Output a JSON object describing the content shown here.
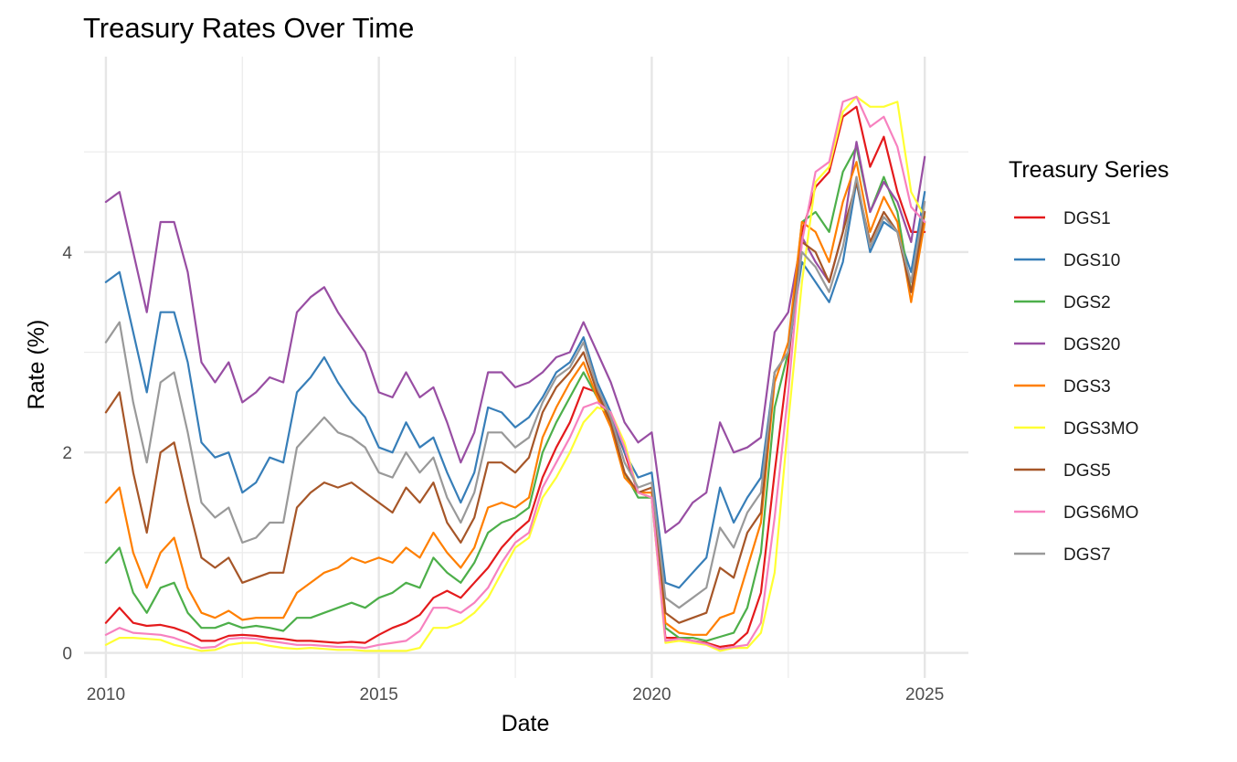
{
  "chart_data": {
    "type": "line",
    "title": "Treasury Rates Over Time",
    "xlabel": "Date",
    "ylabel": "Rate (%)",
    "legend_title": "Treasury Series",
    "legend_position": "right",
    "grid": true,
    "xlim": [
      2009.6,
      2025.8
    ],
    "ylim": [
      -0.25,
      5.95
    ],
    "x_ticks": [
      2010,
      2015,
      2020,
      2025
    ],
    "y_ticks": [
      0,
      2,
      4
    ],
    "x": [
      2010.0,
      2010.25,
      2010.5,
      2010.75,
      2011.0,
      2011.25,
      2011.5,
      2011.75,
      2012.0,
      2012.25,
      2012.5,
      2012.75,
      2013.0,
      2013.25,
      2013.5,
      2013.75,
      2014.0,
      2014.25,
      2014.5,
      2014.75,
      2015.0,
      2015.25,
      2015.5,
      2015.75,
      2016.0,
      2016.25,
      2016.5,
      2016.75,
      2017.0,
      2017.25,
      2017.5,
      2017.75,
      2018.0,
      2018.25,
      2018.5,
      2018.75,
      2019.0,
      2019.25,
      2019.5,
      2019.75,
      2020.0,
      2020.25,
      2020.5,
      2020.75,
      2021.0,
      2021.25,
      2021.5,
      2021.75,
      2022.0,
      2022.25,
      2022.5,
      2022.75,
      2023.0,
      2023.25,
      2023.5,
      2023.75,
      2024.0,
      2024.25,
      2024.5,
      2024.75,
      2025.0
    ],
    "series": [
      {
        "name": "DGS1",
        "color": "#E41A1C",
        "values": [
          0.3,
          0.45,
          0.3,
          0.27,
          0.28,
          0.25,
          0.2,
          0.12,
          0.12,
          0.17,
          0.18,
          0.17,
          0.15,
          0.14,
          0.12,
          0.12,
          0.11,
          0.1,
          0.11,
          0.1,
          0.18,
          0.25,
          0.3,
          0.38,
          0.55,
          0.62,
          0.55,
          0.7,
          0.85,
          1.05,
          1.2,
          1.32,
          1.75,
          2.05,
          2.3,
          2.65,
          2.6,
          2.35,
          2.0,
          1.6,
          1.55,
          0.15,
          0.15,
          0.12,
          0.1,
          0.06,
          0.08,
          0.2,
          0.6,
          1.8,
          2.9,
          4.2,
          4.65,
          4.8,
          5.35,
          5.45,
          4.85,
          5.15,
          4.6,
          4.2,
          4.2
        ]
      },
      {
        "name": "DGS10",
        "color": "#377EB8",
        "values": [
          3.7,
          3.8,
          3.2,
          2.6,
          3.4,
          3.4,
          2.9,
          2.1,
          1.95,
          2.0,
          1.6,
          1.7,
          1.95,
          1.9,
          2.6,
          2.75,
          2.95,
          2.7,
          2.5,
          2.35,
          2.05,
          2.0,
          2.3,
          2.05,
          2.15,
          1.8,
          1.5,
          1.8,
          2.45,
          2.4,
          2.25,
          2.35,
          2.55,
          2.8,
          2.9,
          3.15,
          2.7,
          2.4,
          2.0,
          1.75,
          1.8,
          0.7,
          0.65,
          0.8,
          0.95,
          1.65,
          1.3,
          1.55,
          1.75,
          2.8,
          3.0,
          3.9,
          3.7,
          3.5,
          3.9,
          4.7,
          4.0,
          4.3,
          4.2,
          3.8,
          4.6
        ]
      },
      {
        "name": "DGS2",
        "color": "#4DAF4A",
        "values": [
          0.9,
          1.05,
          0.6,
          0.4,
          0.65,
          0.7,
          0.4,
          0.25,
          0.25,
          0.3,
          0.25,
          0.27,
          0.25,
          0.22,
          0.35,
          0.35,
          0.4,
          0.45,
          0.5,
          0.45,
          0.55,
          0.6,
          0.7,
          0.65,
          0.95,
          0.8,
          0.7,
          0.9,
          1.2,
          1.3,
          1.35,
          1.45,
          2.0,
          2.3,
          2.55,
          2.8,
          2.55,
          2.3,
          1.8,
          1.55,
          1.55,
          0.25,
          0.15,
          0.15,
          0.12,
          0.16,
          0.2,
          0.45,
          1.0,
          2.45,
          3.0,
          4.3,
          4.4,
          4.2,
          4.8,
          5.05,
          4.4,
          4.75,
          4.4,
          3.6,
          4.3
        ]
      },
      {
        "name": "DGS20",
        "color": "#984EA3",
        "values": [
          4.5,
          4.6,
          4.0,
          3.4,
          4.3,
          4.3,
          3.8,
          2.9,
          2.7,
          2.9,
          2.5,
          2.6,
          2.75,
          2.7,
          3.4,
          3.55,
          3.65,
          3.4,
          3.2,
          3.0,
          2.6,
          2.55,
          2.8,
          2.55,
          2.65,
          2.3,
          1.9,
          2.2,
          2.8,
          2.8,
          2.65,
          2.7,
          2.8,
          2.95,
          3.0,
          3.3,
          3.0,
          2.7,
          2.3,
          2.1,
          2.2,
          1.2,
          1.3,
          1.5,
          1.6,
          2.3,
          2.0,
          2.05,
          2.15,
          3.2,
          3.4,
          4.15,
          3.9,
          3.7,
          4.2,
          5.1,
          4.4,
          4.7,
          4.5,
          4.1,
          4.95
        ]
      },
      {
        "name": "DGS3",
        "color": "#FF7F00",
        "values": [
          1.5,
          1.65,
          1.0,
          0.65,
          1.0,
          1.15,
          0.65,
          0.4,
          0.35,
          0.42,
          0.33,
          0.35,
          0.35,
          0.35,
          0.6,
          0.7,
          0.8,
          0.85,
          0.95,
          0.9,
          0.95,
          0.9,
          1.05,
          0.95,
          1.2,
          1.0,
          0.85,
          1.05,
          1.45,
          1.5,
          1.45,
          1.55,
          2.15,
          2.45,
          2.7,
          2.9,
          2.55,
          2.25,
          1.75,
          1.6,
          1.6,
          0.3,
          0.2,
          0.18,
          0.18,
          0.35,
          0.4,
          0.85,
          1.3,
          2.7,
          3.1,
          4.3,
          4.2,
          3.9,
          4.5,
          4.9,
          4.2,
          4.55,
          4.3,
          3.5,
          4.3
        ]
      },
      {
        "name": "DGS3MO",
        "color": "#FFFF33",
        "values": [
          0.08,
          0.15,
          0.15,
          0.14,
          0.13,
          0.08,
          0.05,
          0.02,
          0.03,
          0.08,
          0.1,
          0.1,
          0.07,
          0.05,
          0.04,
          0.05,
          0.04,
          0.03,
          0.03,
          0.02,
          0.02,
          0.02,
          0.02,
          0.05,
          0.25,
          0.25,
          0.3,
          0.4,
          0.55,
          0.8,
          1.05,
          1.15,
          1.55,
          1.75,
          2.0,
          2.3,
          2.45,
          2.4,
          2.1,
          1.6,
          1.55,
          0.1,
          0.12,
          0.1,
          0.08,
          0.02,
          0.05,
          0.05,
          0.2,
          0.8,
          2.3,
          3.7,
          4.7,
          4.85,
          5.4,
          5.55,
          5.45,
          5.45,
          5.5,
          4.6,
          4.35
        ]
      },
      {
        "name": "DGS5",
        "color": "#A65628",
        "values": [
          2.4,
          2.6,
          1.8,
          1.2,
          2.0,
          2.1,
          1.5,
          0.95,
          0.85,
          0.95,
          0.7,
          0.75,
          0.8,
          0.8,
          1.45,
          1.6,
          1.7,
          1.65,
          1.7,
          1.6,
          1.5,
          1.4,
          1.65,
          1.5,
          1.7,
          1.3,
          1.1,
          1.35,
          1.9,
          1.9,
          1.8,
          1.95,
          2.4,
          2.65,
          2.8,
          3.0,
          2.6,
          2.3,
          1.8,
          1.6,
          1.65,
          0.4,
          0.3,
          0.35,
          0.4,
          0.85,
          0.75,
          1.2,
          1.4,
          2.8,
          3.0,
          4.1,
          4.0,
          3.7,
          4.2,
          4.7,
          4.1,
          4.4,
          4.2,
          3.6,
          4.4
        ]
      },
      {
        "name": "DGS6MO",
        "color": "#F781BF",
        "values": [
          0.18,
          0.25,
          0.2,
          0.19,
          0.18,
          0.15,
          0.1,
          0.05,
          0.06,
          0.14,
          0.15,
          0.14,
          0.12,
          0.1,
          0.08,
          0.08,
          0.07,
          0.06,
          0.06,
          0.05,
          0.08,
          0.1,
          0.12,
          0.22,
          0.45,
          0.45,
          0.4,
          0.5,
          0.65,
          0.9,
          1.1,
          1.2,
          1.65,
          1.9,
          2.15,
          2.45,
          2.5,
          2.4,
          2.05,
          1.6,
          1.55,
          0.12,
          0.14,
          0.12,
          0.09,
          0.04,
          0.06,
          0.08,
          0.3,
          1.35,
          2.6,
          4.1,
          4.8,
          4.9,
          5.5,
          5.55,
          5.25,
          5.35,
          5.05,
          4.45,
          4.3
        ]
      },
      {
        "name": "DGS7",
        "color": "#999999",
        "values": [
          3.1,
          3.3,
          2.5,
          1.9,
          2.7,
          2.8,
          2.2,
          1.5,
          1.35,
          1.45,
          1.1,
          1.15,
          1.3,
          1.3,
          2.05,
          2.2,
          2.35,
          2.2,
          2.15,
          2.05,
          1.8,
          1.75,
          2.0,
          1.8,
          1.95,
          1.55,
          1.3,
          1.6,
          2.2,
          2.2,
          2.05,
          2.15,
          2.5,
          2.75,
          2.85,
          3.1,
          2.65,
          2.35,
          1.9,
          1.65,
          1.7,
          0.55,
          0.45,
          0.55,
          0.65,
          1.25,
          1.05,
          1.4,
          1.6,
          2.8,
          3.0,
          4.0,
          3.85,
          3.6,
          4.05,
          4.75,
          4.05,
          4.35,
          4.2,
          3.7,
          4.5
        ]
      }
    ]
  }
}
